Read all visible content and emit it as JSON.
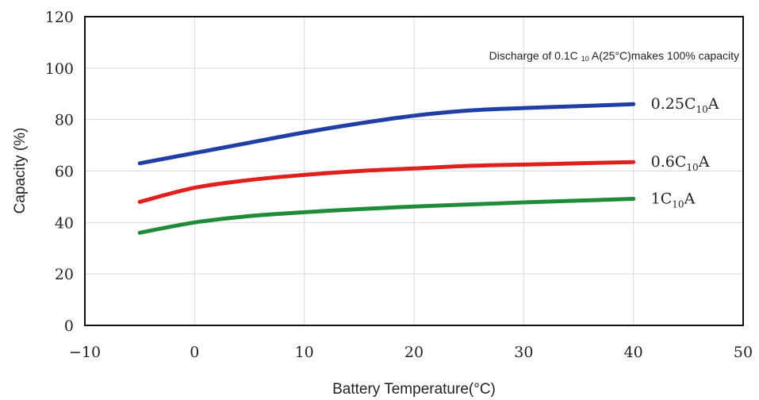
{
  "chart_data": {
    "type": "line",
    "xlabel": "Battery Temperature(°C)",
    "ylabel": "Capacity (%)",
    "xlim": [
      -10,
      50
    ],
    "ylim": [
      0,
      120
    ],
    "x_ticks": [
      -10,
      0,
      10,
      20,
      30,
      40,
      50
    ],
    "y_ticks": [
      0,
      20,
      40,
      60,
      80,
      100,
      120
    ],
    "x_tick_labels": [
      "−10",
      "0",
      "10",
      "20",
      "30",
      "40",
      "50"
    ],
    "y_tick_labels": [
      "0",
      "20",
      "40",
      "60",
      "80",
      "100",
      "120"
    ],
    "grid": true,
    "annotation": {
      "prefix": "Discharge of 0.1C",
      "subscript": "10",
      "suffix": " A(25°C)makes 100% capacity"
    },
    "series": [
      {
        "name": "0.25C10A",
        "label_main": "0.25C",
        "label_sub": "10",
        "label_end": "A",
        "color": "#1f3fa6",
        "x": [
          -5,
          0,
          5,
          10,
          15,
          20,
          25,
          30,
          35,
          40
        ],
        "y": [
          63,
          67,
          71,
          75,
          78.5,
          81.5,
          83.5,
          84.5,
          85.2,
          86
        ]
      },
      {
        "name": "0.6C10A",
        "label_main": "0.6C",
        "label_sub": "10",
        "label_end": "A",
        "color": "#e0201c",
        "x": [
          -5,
          0,
          5,
          10,
          15,
          20,
          25,
          30,
          35,
          40
        ],
        "y": [
          48,
          53.5,
          56.5,
          58.5,
          60,
          61,
          62,
          62.5,
          63,
          63.5
        ]
      },
      {
        "name": "1C10A",
        "label_main": "1C",
        "label_sub": "10",
        "label_end": "A",
        "color": "#1f8c3a",
        "x": [
          -5,
          0,
          5,
          10,
          15,
          20,
          25,
          30,
          35,
          40
        ],
        "y": [
          36,
          40,
          42.5,
          44,
          45.2,
          46.2,
          47,
          47.8,
          48.5,
          49.2
        ]
      }
    ]
  }
}
